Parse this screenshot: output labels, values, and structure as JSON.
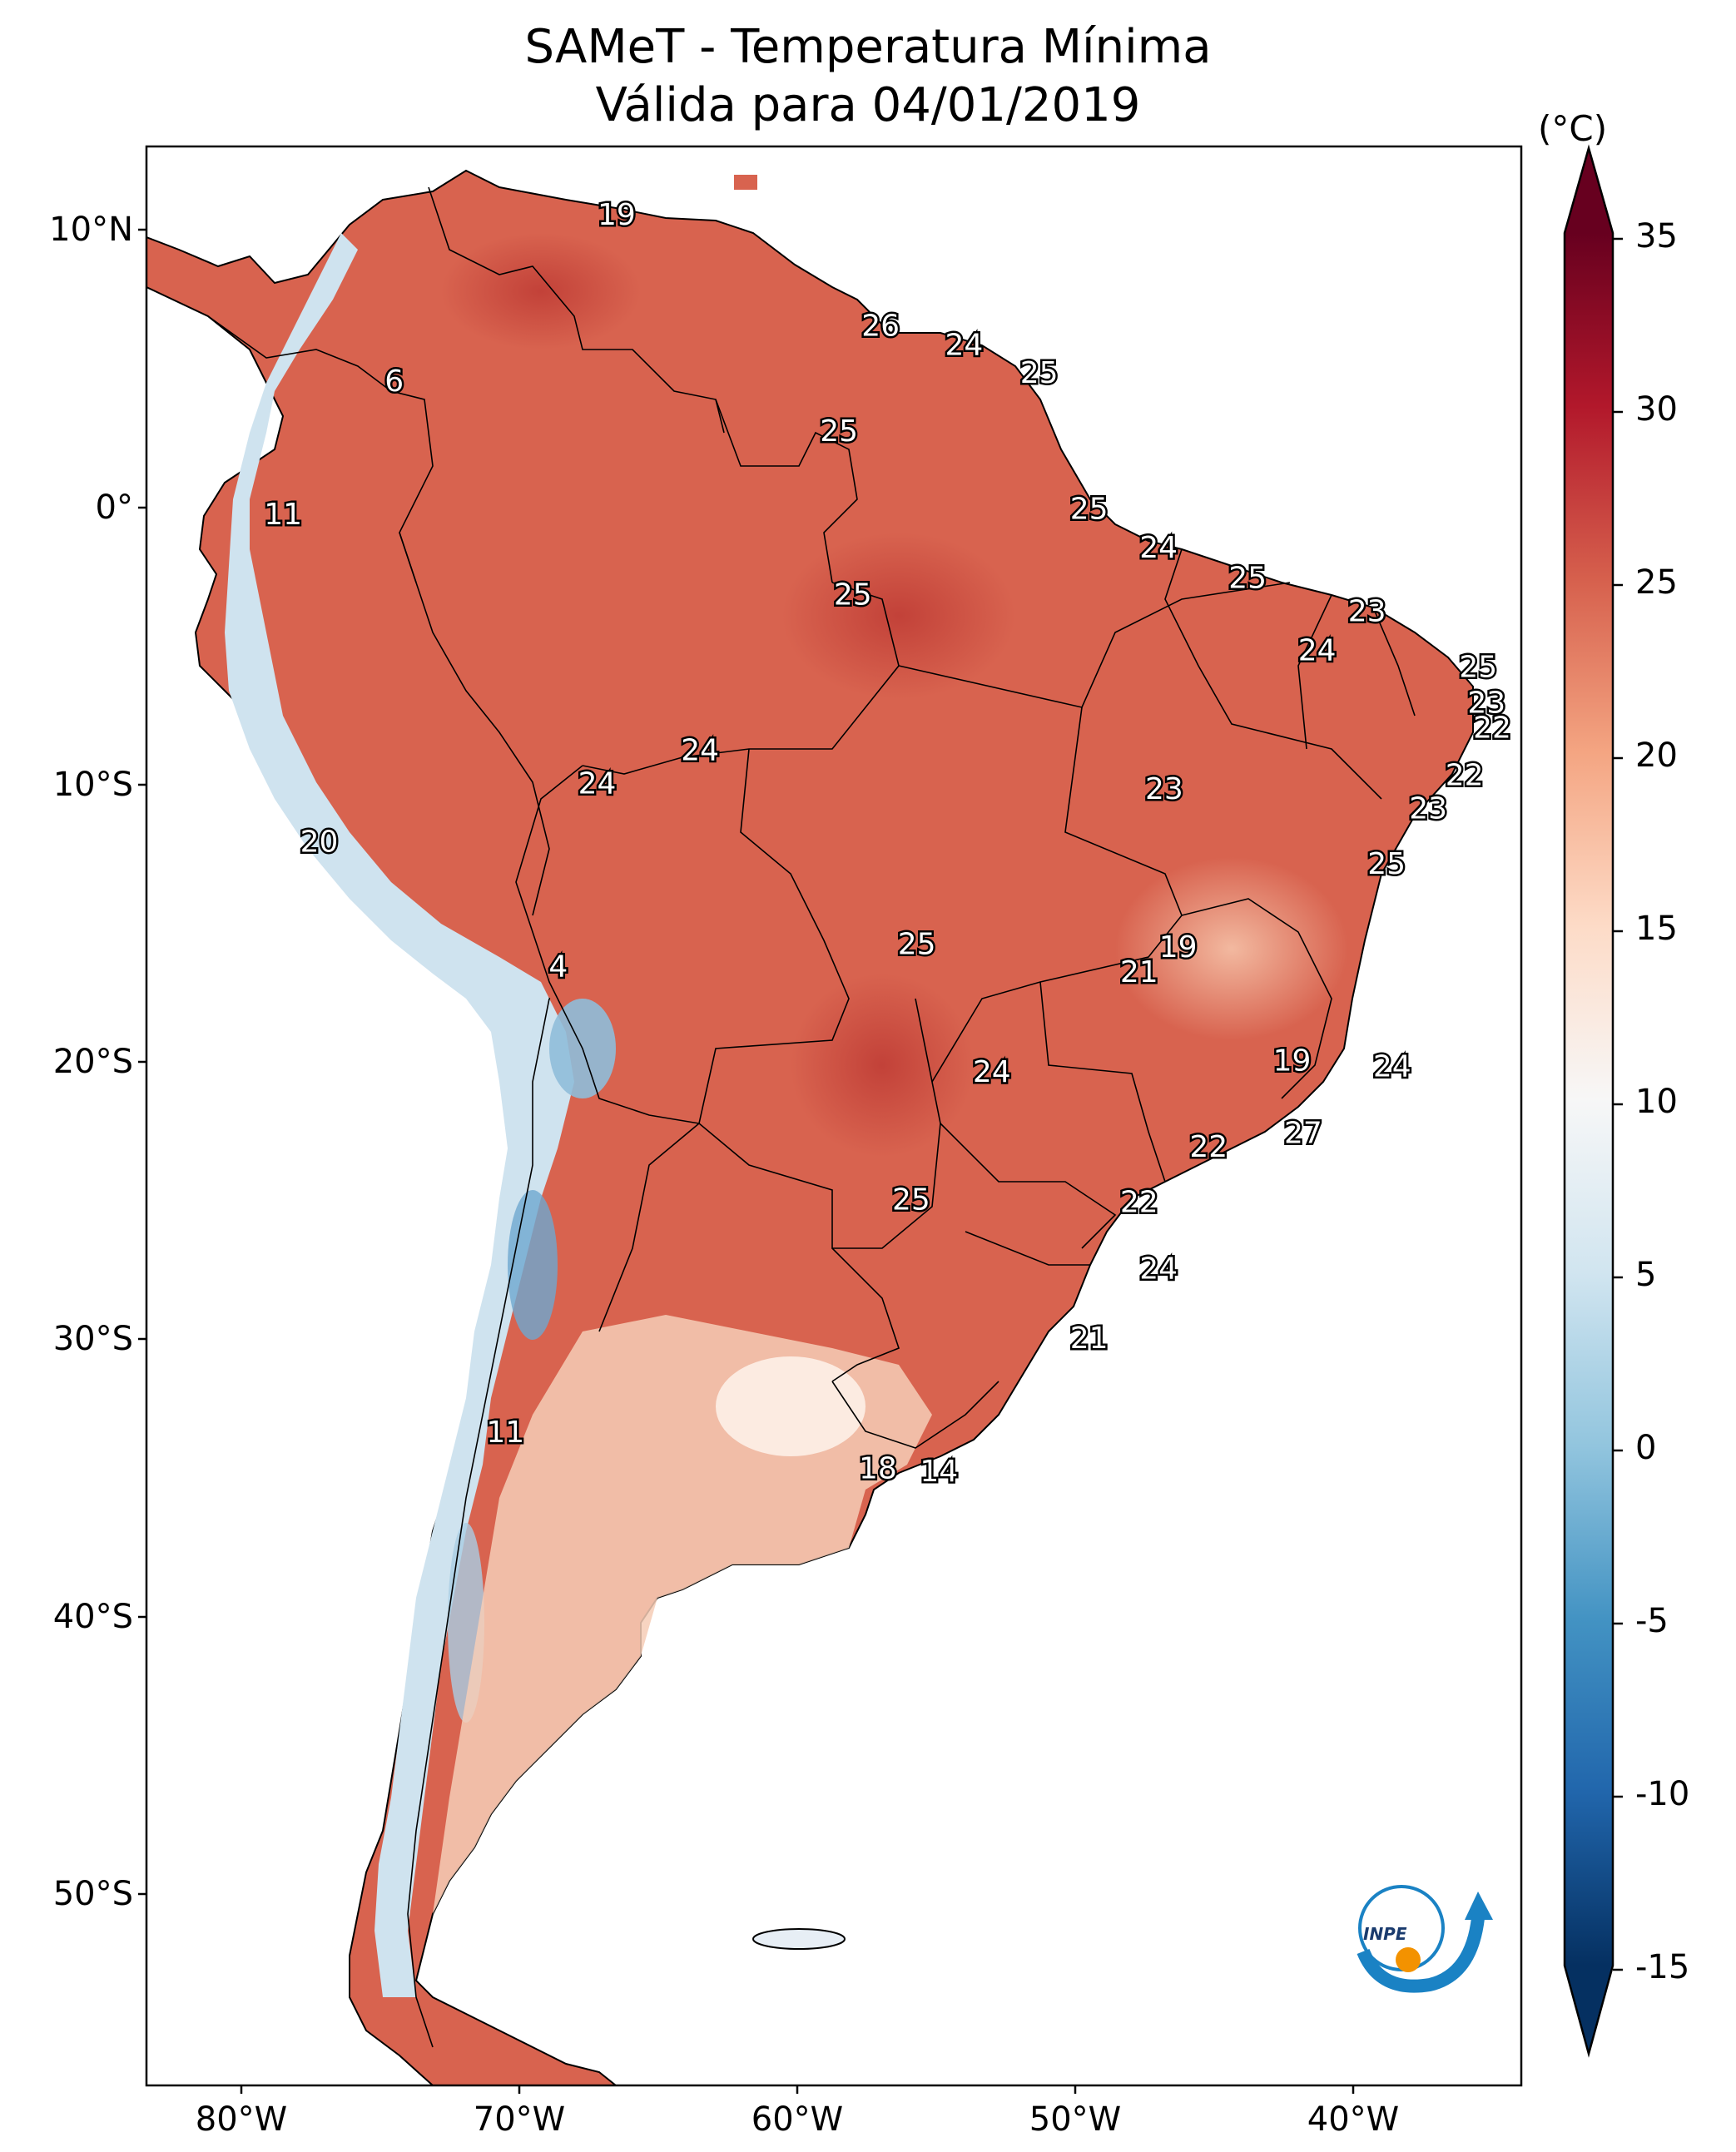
{
  "title": {
    "line1": "SAMeT - Temperatura Mínima",
    "line2": "Válida para 04/01/2019"
  },
  "axes": {
    "lat_ticks": [
      "10°N",
      "0°",
      "10°S",
      "20°S",
      "30°S",
      "40°S",
      "50°S"
    ],
    "lon_ticks": [
      "80°W",
      "70°W",
      "60°W",
      "50°W",
      "40°W"
    ]
  },
  "colorbar": {
    "unit": "(°C)",
    "ticks": [
      "35",
      "30",
      "25",
      "20",
      "15",
      "10",
      "5",
      "0",
      "-5",
      "-10",
      "-15"
    ],
    "min": -15,
    "max": 35,
    "colors": [
      "#053061",
      "#2166ac",
      "#4393c3",
      "#92c5de",
      "#d1e5f0",
      "#f7f7f7",
      "#fddbc7",
      "#f4a582",
      "#d6604d",
      "#b2182b",
      "#67001f"
    ]
  },
  "map_values": [
    {
      "label": "19",
      "lon": -66.5,
      "lat": 10.5
    },
    {
      "label": "26",
      "lon": -57.0,
      "lat": 6.5
    },
    {
      "label": "24",
      "lon": -54.0,
      "lat": 5.8
    },
    {
      "label": "25",
      "lon": -51.3,
      "lat": 4.8
    },
    {
      "label": "6",
      "lon": -74.5,
      "lat": 4.5
    },
    {
      "label": "25",
      "lon": -58.5,
      "lat": 2.7
    },
    {
      "label": "11",
      "lon": -78.5,
      "lat": -0.3
    },
    {
      "label": "25",
      "lon": -49.5,
      "lat": -0.1
    },
    {
      "label": "24",
      "lon": -47.0,
      "lat": -1.5
    },
    {
      "label": "25",
      "lon": -43.8,
      "lat": -2.6
    },
    {
      "label": "25",
      "lon": -58.0,
      "lat": -3.2
    },
    {
      "label": "23",
      "lon": -39.5,
      "lat": -3.8
    },
    {
      "label": "24",
      "lon": -41.3,
      "lat": -5.2
    },
    {
      "label": "25",
      "lon": -35.5,
      "lat": -5.8
    },
    {
      "label": "23",
      "lon": -35.2,
      "lat": -7.1
    },
    {
      "label": "22",
      "lon": -35.0,
      "lat": -8.0
    },
    {
      "label": "24",
      "lon": -63.5,
      "lat": -8.8
    },
    {
      "label": "24",
      "lon": -67.2,
      "lat": -10.0
    },
    {
      "label": "23",
      "lon": -46.8,
      "lat": -10.2
    },
    {
      "label": "22",
      "lon": -36.0,
      "lat": -9.7
    },
    {
      "label": "23",
      "lon": -37.3,
      "lat": -10.9
    },
    {
      "label": "20",
      "lon": -77.2,
      "lat": -12.1
    },
    {
      "label": "25",
      "lon": -38.8,
      "lat": -12.9
    },
    {
      "label": "25",
      "lon": -55.7,
      "lat": -15.8
    },
    {
      "label": "19",
      "lon": -46.3,
      "lat": -15.9
    },
    {
      "label": "21",
      "lon": -47.7,
      "lat": -16.8
    },
    {
      "label": "4",
      "lon": -68.6,
      "lat": -16.6
    },
    {
      "label": "19",
      "lon": -42.2,
      "lat": -20.0
    },
    {
      "label": "24",
      "lon": -53.0,
      "lat": -20.4
    },
    {
      "label": "24",
      "lon": -38.6,
      "lat": -20.2
    },
    {
      "label": "27",
      "lon": -41.8,
      "lat": -22.6
    },
    {
      "label": "22",
      "lon": -45.2,
      "lat": -23.1
    },
    {
      "label": "25",
      "lon": -55.9,
      "lat": -25.0
    },
    {
      "label": "22",
      "lon": -47.7,
      "lat": -25.1
    },
    {
      "label": "24",
      "lon": -47.0,
      "lat": -27.5
    },
    {
      "label": "21",
      "lon": -49.5,
      "lat": -30.0
    },
    {
      "label": "11",
      "lon": -70.5,
      "lat": -33.4
    },
    {
      "label": "18",
      "lon": -57.1,
      "lat": -34.7
    },
    {
      "label": "14",
      "lon": -54.9,
      "lat": -34.8
    }
  ],
  "logo": {
    "text": "INPE"
  }
}
